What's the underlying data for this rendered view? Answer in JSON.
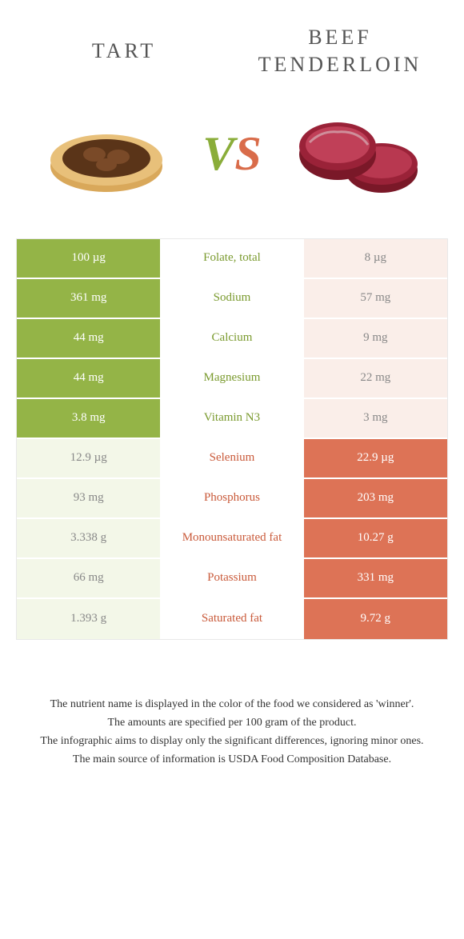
{
  "colors": {
    "green": "#94b447",
    "orange": "#dd7356",
    "green_text": "#7a9a2e",
    "orange_text": "#c95a3a",
    "light_green_cell": "#f3f7e8",
    "light_orange_cell": "#faeee9"
  },
  "header": {
    "left": "TART",
    "right": "BEEF TENDERLOIN"
  },
  "vs": {
    "v": "V",
    "s": "S"
  },
  "rows": [
    {
      "left": "100 µg",
      "mid": "Folate, total",
      "right": "8 µg",
      "winner": "left"
    },
    {
      "left": "361 mg",
      "mid": "Sodium",
      "right": "57 mg",
      "winner": "left"
    },
    {
      "left": "44 mg",
      "mid": "Calcium",
      "right": "9 mg",
      "winner": "left"
    },
    {
      "left": "44 mg",
      "mid": "Magnesium",
      "right": "22 mg",
      "winner": "left"
    },
    {
      "left": "3.8 mg",
      "mid": "Vitamin N3",
      "right": "3 mg",
      "winner": "left"
    },
    {
      "left": "12.9 µg",
      "mid": "Selenium",
      "right": "22.9 µg",
      "winner": "right"
    },
    {
      "left": "93 mg",
      "mid": "Phosphorus",
      "right": "203 mg",
      "winner": "right"
    },
    {
      "left": "3.338 g",
      "mid": "Monounsaturated fat",
      "right": "10.27 g",
      "winner": "right"
    },
    {
      "left": "66 mg",
      "mid": "Potassium",
      "right": "331 mg",
      "winner": "right"
    },
    {
      "left": "1.393 g",
      "mid": "Saturated fat",
      "right": "9.72 g",
      "winner": "right"
    }
  ],
  "footer": {
    "line1": "The nutrient name is displayed in the color of the food we considered as 'winner'.",
    "line2": "The amounts are specified per 100 gram of the product.",
    "line3": "The infographic aims to display only the significant differences, ignoring minor ones.",
    "line4": "The main source of information is USDA Food Composition Database."
  }
}
